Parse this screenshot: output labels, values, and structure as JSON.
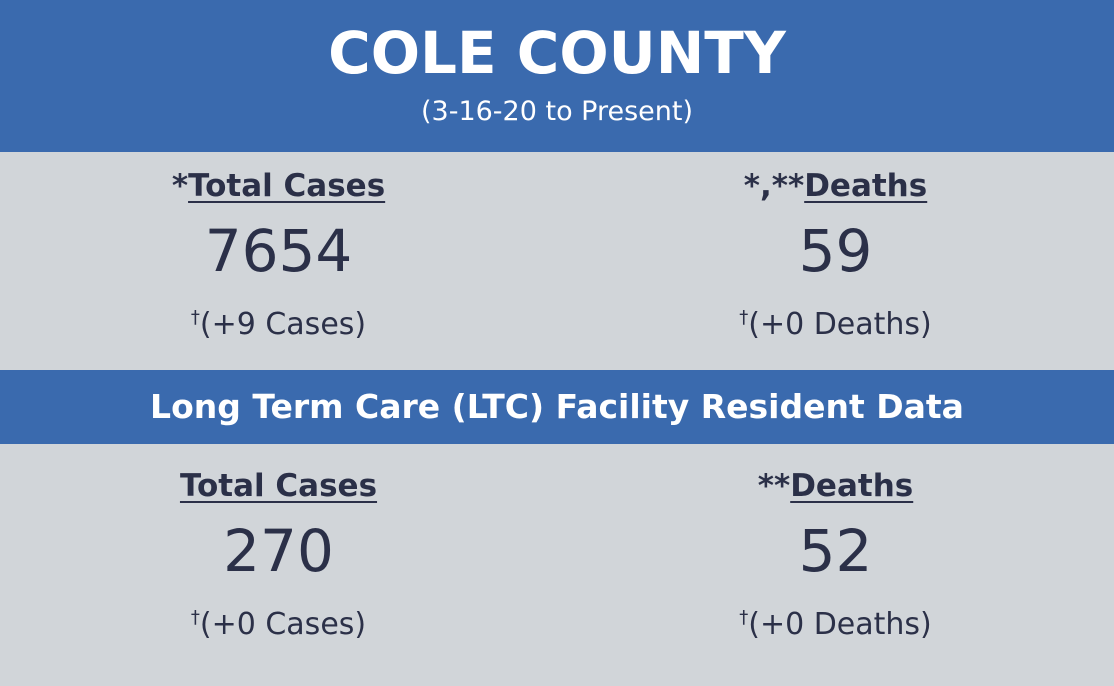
{
  "header": {
    "title": "COLE COUNTY",
    "subtitle": "(3-16-20 to Present)"
  },
  "sections": [
    {
      "stats": [
        {
          "prefix": "*",
          "label": "Total Cases",
          "value": 7654,
          "mark": "†",
          "change": "(+9 Cases)"
        },
        {
          "prefix": "*,**",
          "label": "Deaths",
          "value": 59,
          "mark": "†",
          "change": "(+0 Deaths)"
        }
      ]
    },
    {
      "title": "Long Term Care (LTC) Facility Resident Data",
      "stats": [
        {
          "label": "Total Cases",
          "value": 270,
          "mark": "†",
          "change": "(+0 Cases)"
        },
        {
          "prefix": "**",
          "label": "Deaths",
          "value": 52,
          "mark": "†",
          "change": "(+0 Deaths)"
        }
      ]
    }
  ]
}
